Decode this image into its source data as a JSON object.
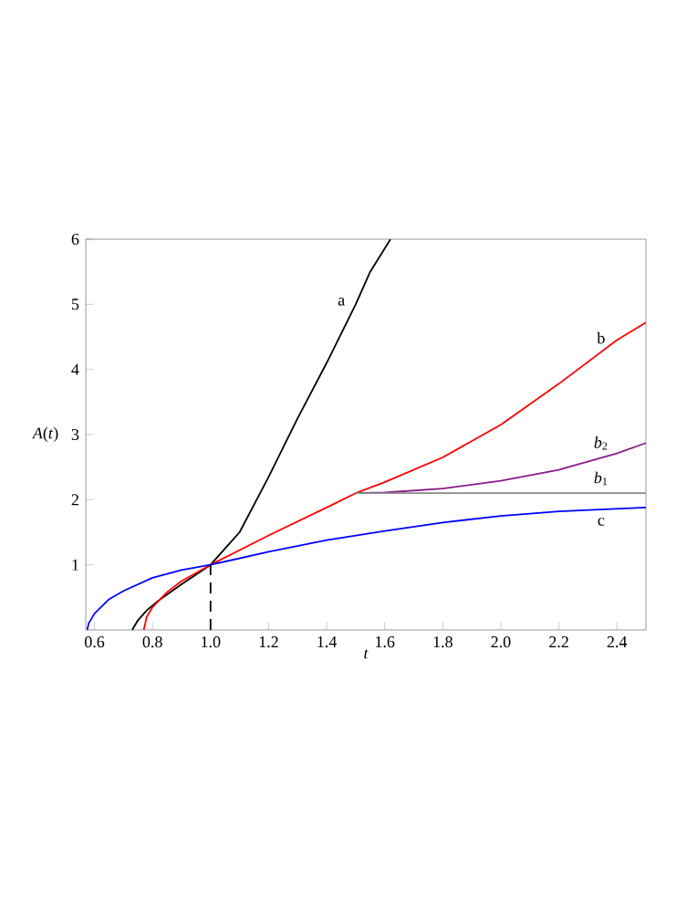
{
  "chart_data": {
    "type": "line",
    "xlabel": "t",
    "ylabel": "*A*(*t*)",
    "xlim": [
      0.57,
      2.5
    ],
    "ylim": [
      0,
      6
    ],
    "xticks": [
      0.6,
      0.8,
      {
        "value": 1,
        "label": "1.0"
      },
      1.2,
      1.4,
      1.6,
      1.8,
      {
        "value": 2,
        "label": "2.0"
      },
      2.2,
      2.4
    ],
    "yticks": [
      1,
      2,
      3,
      4,
      5,
      6
    ],
    "series": [
      {
        "name": "a",
        "color": "#000000",
        "x": [
          0.73,
          0.75,
          0.78,
          0.82,
          0.9,
          1.0,
          1.1,
          1.2,
          1.3,
          1.4,
          1.5,
          1.55,
          1.62
        ],
        "values": [
          0,
          0.15,
          0.3,
          0.45,
          0.7,
          1.0,
          1.5,
          2.35,
          3.25,
          4.1,
          5.0,
          5.5,
          6.0
        ]
      },
      {
        "name": "b",
        "color": "#ff0000",
        "x": [
          0.77,
          0.78,
          0.8,
          0.85,
          0.9,
          1.0,
          1.2,
          1.4,
          1.5,
          1.6,
          1.8,
          2.0,
          2.2,
          2.4,
          2.5
        ],
        "values": [
          0,
          0.2,
          0.35,
          0.58,
          0.75,
          1.0,
          1.45,
          1.88,
          2.1,
          2.27,
          2.65,
          3.15,
          3.78,
          4.45,
          4.72
        ]
      },
      {
        "name": "*b*$_{2}$",
        "color": "#8b1a89",
        "x": [
          1.5,
          1.6,
          1.8,
          2.0,
          2.2,
          2.4,
          2.5
        ],
        "values": [
          2.1,
          2.11,
          2.17,
          2.29,
          2.46,
          2.71,
          2.87
        ]
      },
      {
        "name": "*b*$_{1}$",
        "color": "#888888",
        "x": [
          1.5,
          2.5
        ],
        "values": [
          2.1,
          2.1
        ]
      },
      {
        "name": "c",
        "color": "#0000ff",
        "x": [
          0.575,
          0.58,
          0.6,
          0.65,
          0.7,
          0.8,
          0.9,
          1.0,
          1.2,
          1.4,
          1.6,
          1.8,
          2.0,
          2.2,
          2.4,
          2.5
        ],
        "values": [
          0,
          0.1,
          0.25,
          0.47,
          0.6,
          0.8,
          0.92,
          1.0,
          1.2,
          1.38,
          1.52,
          1.65,
          1.75,
          1.82,
          1.86,
          1.88
        ]
      },
      {
        "color": "#000000",
        "line_style": "dashed",
        "x": [
          1,
          1
        ],
        "values": [
          0,
          1
        ]
      }
    ]
  }
}
